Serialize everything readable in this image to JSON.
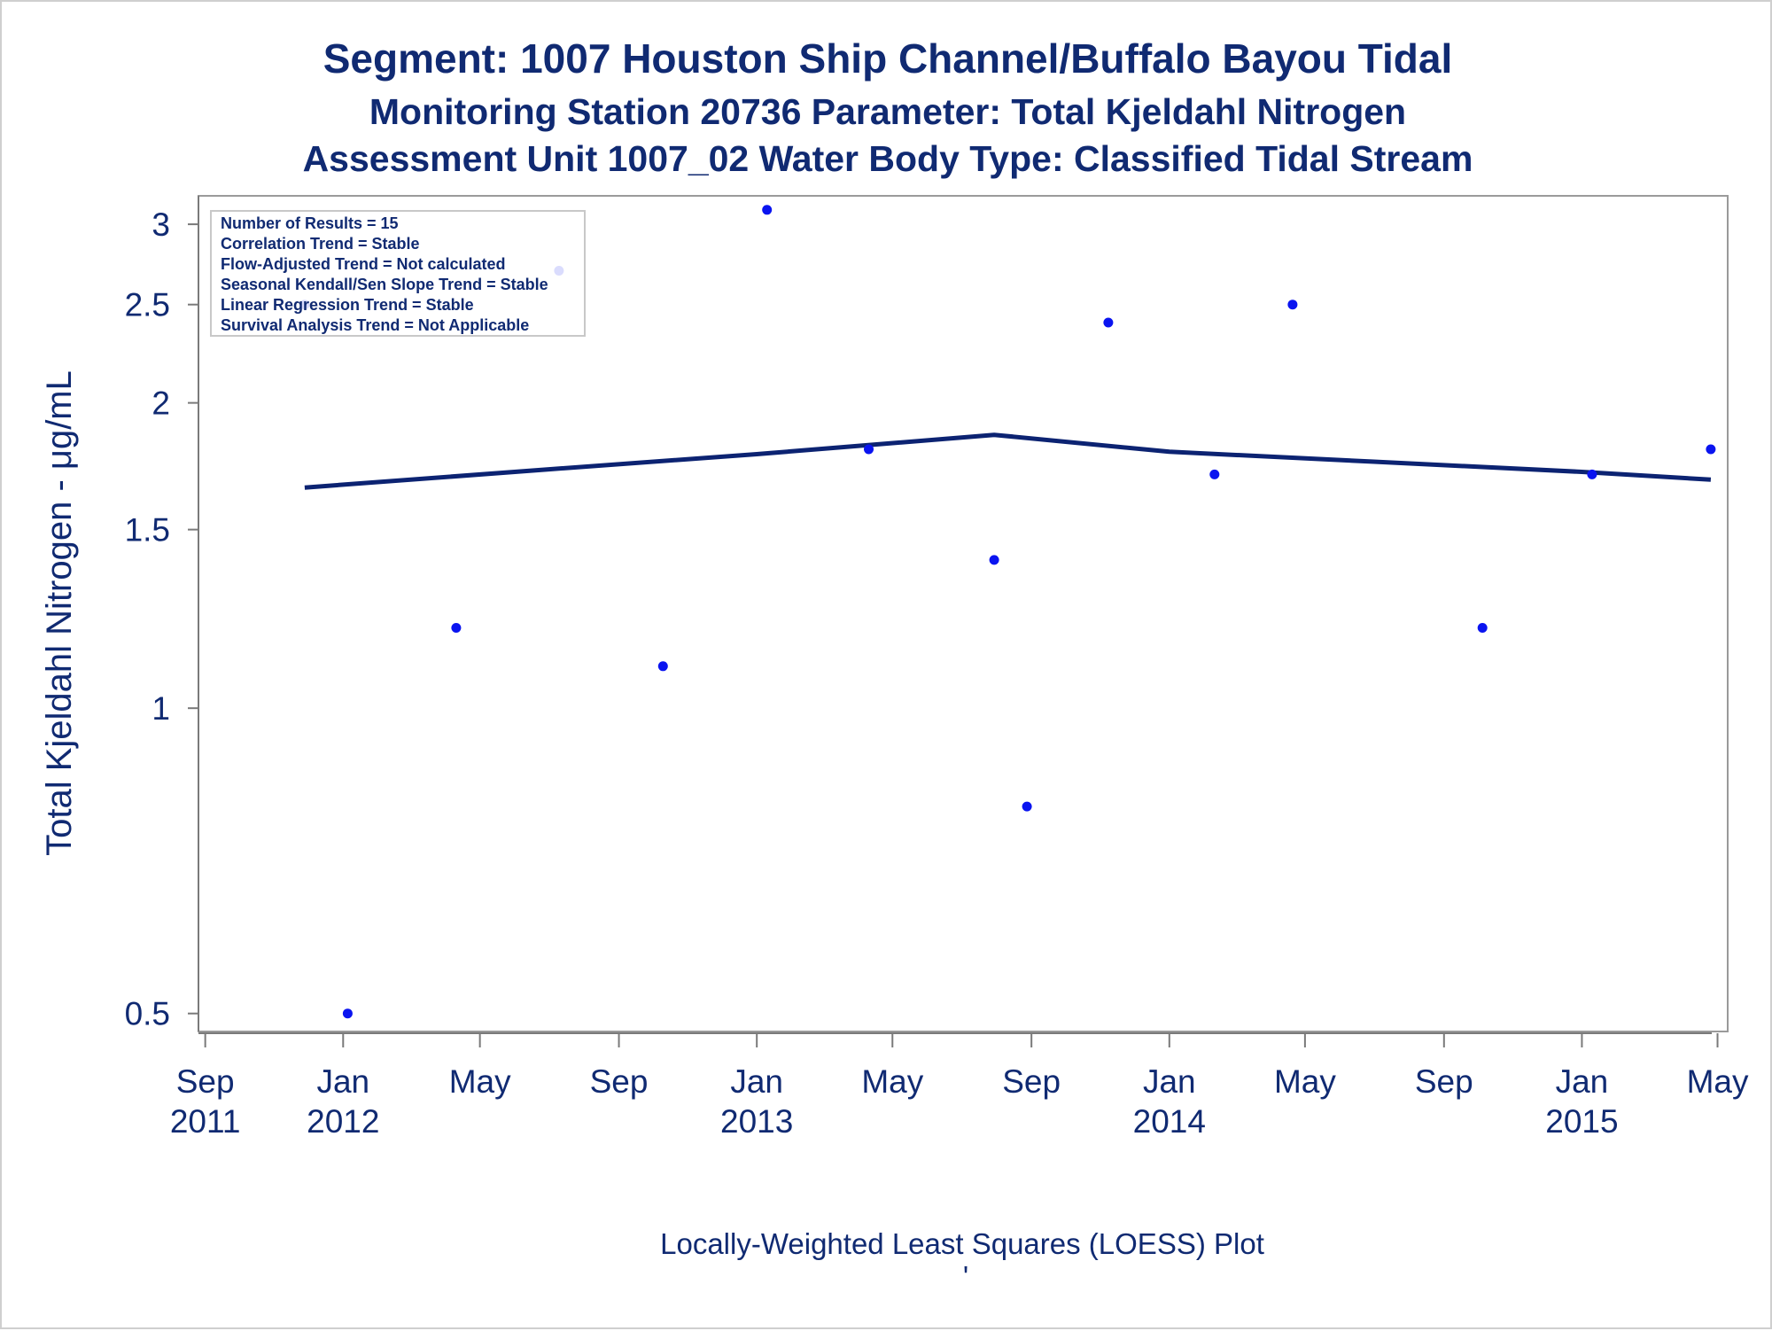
{
  "titles": {
    "line1": "Segment: 1007  Houston Ship Channel/Buffalo Bayou Tidal",
    "line2": "Monitoring Station 20736 Parameter: Total Kjeldahl Nitrogen",
    "line3": "Assessment Unit 1007_02   Water Body Type: Classified Tidal Stream"
  },
  "stats_box": {
    "lines": [
      "Number of Results = 15",
      "Correlation Trend = Stable",
      "Flow-Adjusted Trend = Not calculated",
      "Seasonal Kendall/Sen Slope Trend = Stable",
      "Linear Regression Trend = Stable",
      "Survival Analysis Trend = Not Applicable"
    ]
  },
  "footnote": "Locally-Weighted Least Squares (LOESS) Plot",
  "footnote_mark": "'",
  "colors": {
    "text": "#102a72",
    "points": "#0a14f0",
    "loess_line": "#0c2372",
    "frame": "#9a9a9a"
  },
  "chart_data": {
    "type": "scatter",
    "title": "Segment: 1007  Houston Ship Channel/Buffalo Bayou Tidal",
    "xlabel": "",
    "ylabel": "Total Kjeldahl Nitrogen -  μg/mL",
    "y_scale": "log",
    "xlim": [
      "2011-08-26",
      "2015-05-10"
    ],
    "ylim": [
      0.48,
      3.2
    ],
    "grid": false,
    "legend": "none",
    "x_ticks": [
      {
        "date": "2011-09-01",
        "label_top": "Sep",
        "label_bottom": "2011"
      },
      {
        "date": "2012-01-01",
        "label_top": "Jan",
        "label_bottom": "2012"
      },
      {
        "date": "2012-05-01",
        "label_top": "May",
        "label_bottom": ""
      },
      {
        "date": "2012-09-01",
        "label_top": "Sep",
        "label_bottom": ""
      },
      {
        "date": "2013-01-01",
        "label_top": "Jan",
        "label_bottom": "2013"
      },
      {
        "date": "2013-05-01",
        "label_top": "May",
        "label_bottom": ""
      },
      {
        "date": "2013-09-01",
        "label_top": "Sep",
        "label_bottom": ""
      },
      {
        "date": "2014-01-01",
        "label_top": "Jan",
        "label_bottom": "2014"
      },
      {
        "date": "2014-05-01",
        "label_top": "May",
        "label_bottom": ""
      },
      {
        "date": "2014-09-01",
        "label_top": "Sep",
        "label_bottom": ""
      },
      {
        "date": "2015-01-01",
        "label_top": "Jan",
        "label_bottom": "2015"
      },
      {
        "date": "2015-05-01",
        "label_top": "May",
        "label_bottom": ""
      }
    ],
    "y_ticks": [
      {
        "value": 0.5,
        "label": "0.5"
      },
      {
        "value": 1,
        "label": "1"
      },
      {
        "value": 1.5,
        "label": "1.5"
      },
      {
        "value": 2,
        "label": "2"
      },
      {
        "value": 2.5,
        "label": "2.5"
      },
      {
        "value": 3,
        "label": "3"
      }
    ],
    "series": [
      {
        "type": "scatter",
        "points": [
          {
            "x": "2011-11-28",
            "y": 2.5
          },
          {
            "x": "2012-01-05",
            "y": 0.5
          },
          {
            "x": "2012-04-10",
            "y": 1.2
          },
          {
            "x": "2012-07-10",
            "y": 2.7
          },
          {
            "x": "2012-10-10",
            "y": 1.1
          },
          {
            "x": "2013-01-10",
            "y": 3.1
          },
          {
            "x": "2013-04-10",
            "y": 1.8
          },
          {
            "x": "2013-07-30",
            "y": 1.4
          },
          {
            "x": "2013-08-28",
            "y": 0.8
          },
          {
            "x": "2013-11-08",
            "y": 2.4
          },
          {
            "x": "2014-02-10",
            "y": 1.7
          },
          {
            "x": "2014-04-20",
            "y": 2.5
          },
          {
            "x": "2014-10-05",
            "y": 1.2
          },
          {
            "x": "2015-01-10",
            "y": 1.7
          },
          {
            "x": "2015-04-25",
            "y": 1.8
          }
        ]
      },
      {
        "type": "line",
        "points": [
          {
            "x": "2011-11-28",
            "y": 1.65
          },
          {
            "x": "2012-07-01",
            "y": 1.72
          },
          {
            "x": "2013-01-01",
            "y": 1.78
          },
          {
            "x": "2013-07-30",
            "y": 1.86
          },
          {
            "x": "2014-01-01",
            "y": 1.79
          },
          {
            "x": "2014-07-01",
            "y": 1.75
          },
          {
            "x": "2015-01-01",
            "y": 1.71
          },
          {
            "x": "2015-04-25",
            "y": 1.68
          }
        ]
      }
    ]
  }
}
